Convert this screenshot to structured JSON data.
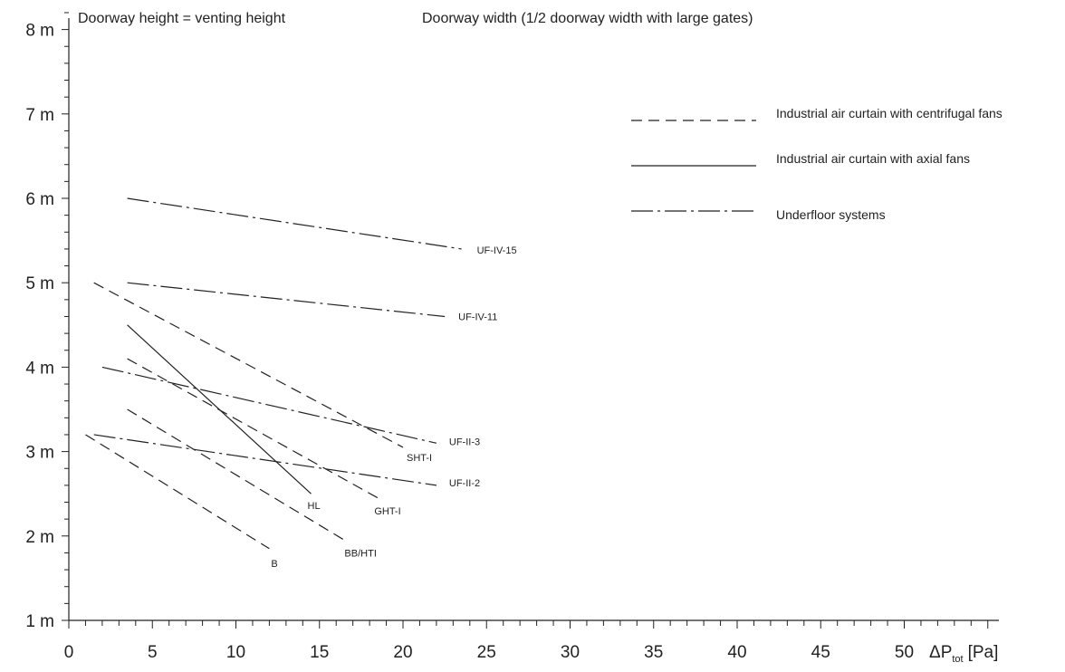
{
  "chart_data": {
    "type": "line",
    "headers": {
      "left": "Doorway height = venting height",
      "right": "Doorway width (1/2 doorway width with large gates)"
    },
    "x_axis": {
      "range": [
        0,
        55
      ],
      "tick_labels": [
        "0",
        "5",
        "10",
        "15",
        "20",
        "25",
        "30",
        "35",
        "40",
        "45",
        "50"
      ],
      "label_main": "ΔP",
      "label_sub": "tot",
      "label_unit": "[Pa]"
    },
    "y_axis": {
      "range": [
        1,
        8.4
      ],
      "tick_labels": [
        "1 m",
        "2 m",
        "3 m",
        "4 m",
        "5 m",
        "6 m",
        "7 m",
        "8 m"
      ]
    },
    "legend": [
      {
        "style": "dashed",
        "label": "Industrial air curtain with centrifugal fans"
      },
      {
        "style": "solid",
        "label": "Industrial air curtain with axial fans"
      },
      {
        "style": "dashdot",
        "label": "Underfloor systems"
      }
    ],
    "series": [
      {
        "name": "B",
        "style": "dashed",
        "x": [
          1,
          12
        ],
        "y": [
          3.2,
          1.85
        ]
      },
      {
        "name": "BB/HTI",
        "style": "dashed",
        "x": [
          3.5,
          16.5
        ],
        "y": [
          3.5,
          1.95
        ]
      },
      {
        "name": "GHT-I",
        "style": "dashed",
        "x": [
          3.5,
          18.5
        ],
        "y": [
          4.1,
          2.45
        ]
      },
      {
        "name": "SHT-I",
        "style": "dashed",
        "x": [
          1.5,
          20
        ],
        "y": [
          5.0,
          3.05
        ]
      },
      {
        "name": "HL",
        "style": "solid",
        "x": [
          3.5,
          14.5
        ],
        "y": [
          4.5,
          2.5
        ]
      },
      {
        "name": "UF-II-2",
        "style": "dashdot",
        "x": [
          1.5,
          22
        ],
        "y": [
          3.2,
          2.6
        ]
      },
      {
        "name": "UF-II-3",
        "style": "dashdot",
        "x": [
          2,
          22
        ],
        "y": [
          4.0,
          3.1
        ]
      },
      {
        "name": "UF-IV-11",
        "style": "dashdot",
        "x": [
          3.5,
          22.5
        ],
        "y": [
          5.0,
          4.6
        ]
      },
      {
        "name": "UF-IV-15",
        "style": "dashdot",
        "x": [
          3.5,
          23.5
        ],
        "y": [
          6.0,
          5.4
        ]
      }
    ]
  }
}
